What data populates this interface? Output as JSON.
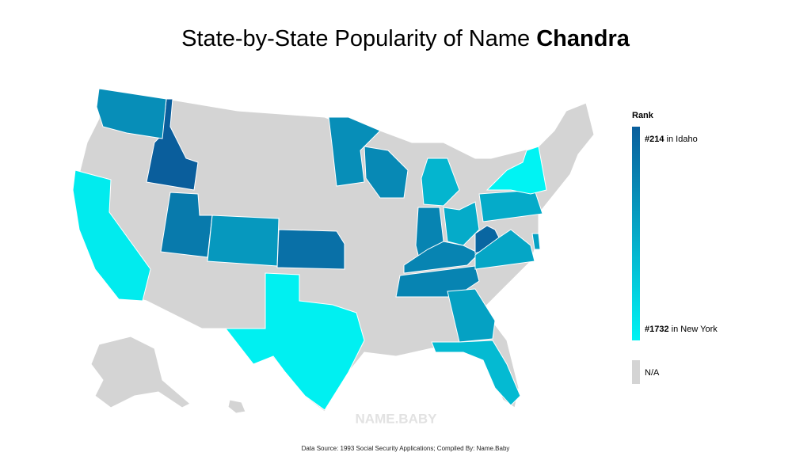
{
  "chart_data": {
    "type": "choropleth",
    "title": "State-by-State Popularity of Name",
    "title_name": "Chandra",
    "values": [
      214,
      700,
      500,
      800,
      400,
      700,
      650,
      1100,
      600,
      1000,
      600,
      600,
      300,
      950,
      1000,
      1732,
      900,
      1150,
      1650,
      1700,
      900
    ],
    "scale": {
      "min": 214,
      "max": 1732,
      "colors": [
        "#0a5e9c",
        "#00f3f3"
      ]
    },
    "na_color": "#d4d4d4",
    "legend": {
      "title": "Rank",
      "high": {
        "value": 214,
        "label": "#214"
      },
      "high_note": "in Idaho",
      "low": {
        "value": 1732,
        "label": "#1732"
      },
      "low_note": "in New York",
      "na": "N/A"
    },
    "watermark": "NAME.BABY",
    "source": "Data Source: 1993 Social Security Applications; Compiled By: Name.Baby"
  }
}
